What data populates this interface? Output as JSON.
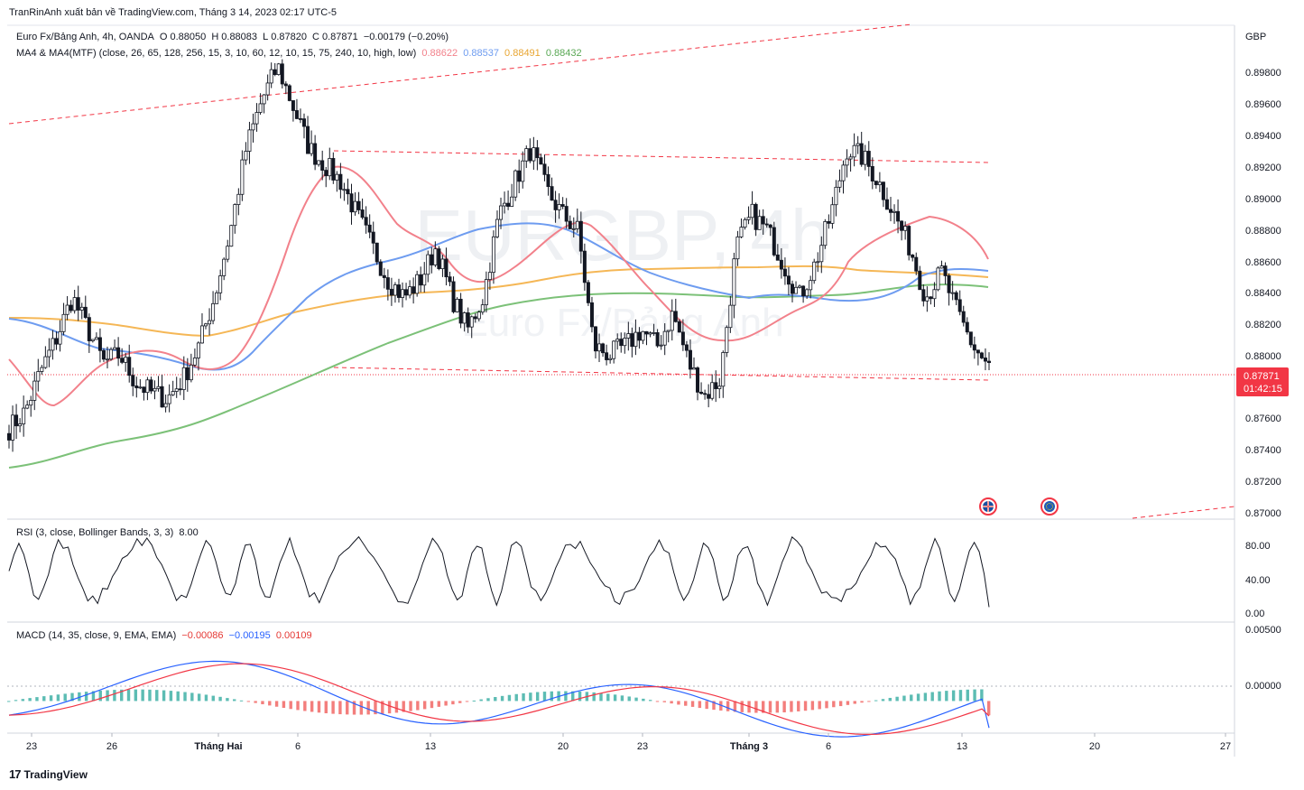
{
  "caption": "TranRinAnh xuất bản về TradingView.com, Tháng 3 14, 2023 02:17 UTC-5",
  "legend": {
    "symbol": "Euro Fx/Bảng Anh, 4h, OANDA",
    "o_label": "O",
    "o": "0.88050",
    "h_label": "H",
    "h": "0.88083",
    "l_label": "L",
    "l": "0.87820",
    "c_label": "C",
    "c": "0.87871",
    "change": "−0.00179 (−0.20%)",
    "ma_title": "MA4 & MA4(MTF) (close, 26, 65, 128, 256, 15, 3, 10, 60, 12, 10, 15, 75, 240, 10, high, low)",
    "ma_values": [
      "0.88622",
      "0.88537",
      "0.88491",
      "0.88432"
    ],
    "ma_colors": [
      "#f2818b",
      "#6e9cf0",
      "#f5b756",
      "#7cc178"
    ],
    "rsi_title": "RSI (3, close, Bollinger Bands, 3, 3)",
    "rsi_value": "8.00",
    "macd_title": "MACD (14, 35, close, 9, EMA, EMA)",
    "macd_values": [
      "−0.00086",
      "−0.00195",
      "0.00109"
    ],
    "macd_colors": [
      "#e53935",
      "#2962ff",
      "#e53935"
    ]
  },
  "watermark": {
    "symbol": "EURGBP, 4h",
    "name": "Euro Fx/Bảng Anh"
  },
  "price_scale": {
    "currency": "GBP",
    "ticks": [
      "0.89800",
      "0.89600",
      "0.89400",
      "0.89200",
      "0.89000",
      "0.88800",
      "0.88600",
      "0.88400",
      "0.88200",
      "0.88000",
      "0.87600",
      "0.87400",
      "0.87200",
      "0.87000"
    ],
    "last_price": "0.87871",
    "countdown": "01:42:15",
    "last_color": "#f23645"
  },
  "rsi_scale": {
    "ticks": [
      "80.00",
      "40.00",
      "0.00"
    ]
  },
  "macd_scale": {
    "ticks": [
      "0.00500",
      "0.00000"
    ]
  },
  "time_axis": {
    "labels": [
      "23",
      "26",
      "Tháng Hai",
      "6",
      "13",
      "20",
      "23",
      "Tháng 3",
      "6",
      "13",
      "20",
      "27"
    ],
    "bold": [
      false,
      false,
      true,
      false,
      false,
      false,
      false,
      true,
      false,
      false,
      false,
      false
    ]
  },
  "brand": {
    "text": "TradingView"
  },
  "chart_data": {
    "type": "candlestick",
    "symbol": "EURGBP",
    "timeframe": "4h",
    "ylim": [
      0.8695,
      0.8995
    ],
    "rsi_ylim": [
      0,
      100
    ],
    "macd_ylim": [
      -0.0022,
      0.0056
    ],
    "ohlc_anchor_closes": [
      0.875,
      0.876,
      0.8785,
      0.8805,
      0.883,
      0.881,
      0.879,
      0.8795,
      0.8778,
      0.8772,
      0.8768,
      0.878,
      0.88,
      0.883,
      0.887,
      0.892,
      0.895,
      0.897,
      0.8945,
      0.892,
      0.891,
      0.89,
      0.888,
      0.886,
      0.884,
      0.883,
      0.884,
      0.886,
      0.883,
      0.881,
      0.883,
      0.888,
      0.89,
      0.892,
      0.8895,
      0.888,
      0.887,
      0.88,
      0.8795,
      0.88,
      0.881,
      0.88,
      0.882,
      0.879,
      0.877,
      0.878,
      0.886,
      0.888,
      0.887,
      0.885,
      0.883,
      0.885,
      0.888,
      0.892,
      0.8915,
      0.89,
      0.888,
      0.886,
      0.883,
      0.8845,
      0.882,
      0.88,
      0.8787
    ],
    "series": [
      {
        "name": "MA 26",
        "color": "#f2818b"
      },
      {
        "name": "MA 65",
        "color": "#6e9cf0"
      },
      {
        "name": "MA 128",
        "color": "#f5b756"
      },
      {
        "name": "MA 256",
        "color": "#7cc178"
      }
    ]
  }
}
